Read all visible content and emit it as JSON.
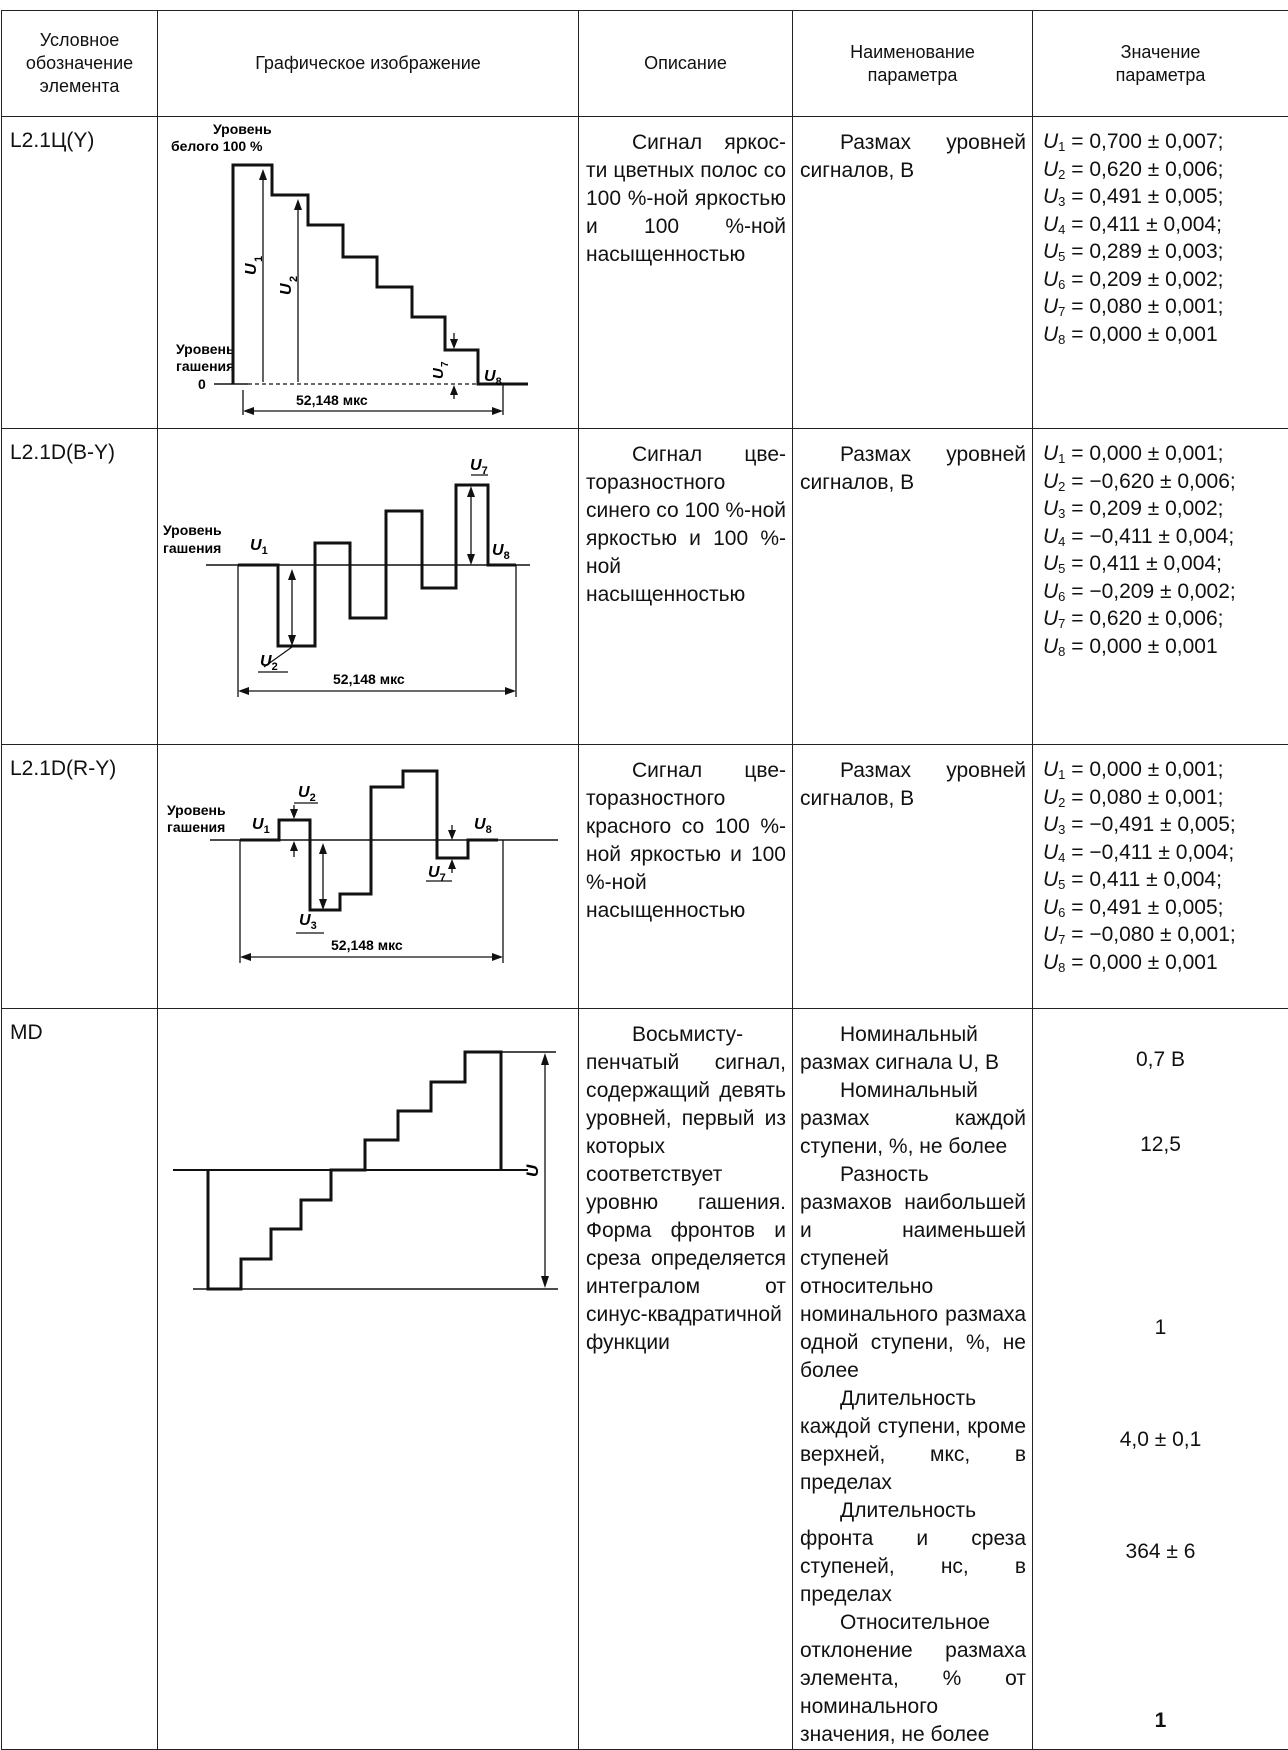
{
  "headers": {
    "code": "Условное обозначение элемента",
    "graphic": "Графическое изображение",
    "description": "Описание",
    "param_name": "Наименование параметра",
    "param_value": "Значение параметра"
  },
  "rows": [
    {
      "code": "L2.1Ц(Y)",
      "description_first": "Сигнал яркос-",
      "description_rest": "ти цветных полос со 100 %-ной яркостью и 100 %-ной насыщенностью",
      "param_name_first": "Размах уровней",
      "param_name_rest": "сигналов, В",
      "values": [
        "0,700 ± 0,007;",
        "0,620 ± 0,006;",
        "0,491 ± 0,005;",
        "0,411 ± 0,004;",
        "0,289 ± 0,003;",
        "0,209 ± 0,002;",
        "0,080 ± 0,001;",
        "0,000 ± 0,001"
      ],
      "graphic": {
        "label_white": "Уровень белого 100 %",
        "label_white_1": "Уровень",
        "label_white_2": "белого 100 %",
        "label_blank_1": "Уровень",
        "label_blank_2": "гашения",
        "label_zero": "0",
        "duration": "52,148 мкс"
      }
    },
    {
      "code": "L2.1D(B-Y)",
      "description_first": "Сигнал цве-",
      "description_rest": "торазностного синего со 100 %-ной яркостью и 100 %-ной насыщенностью",
      "param_name_first": "Размах уровней",
      "param_name_rest": "сигналов, В",
      "values": [
        "0,000 ± 0,001;",
        "−0,620 ± 0,006;",
        "0,209 ± 0,002;",
        "−0,411 ± 0,004;",
        "0,411 ± 0,004;",
        "−0,209 ± 0,002;",
        "0,620 ±  0,006;",
        "0,000 ± 0,001"
      ],
      "graphic": {
        "label_blank_1": "Уровень",
        "label_blank_2": "гашения",
        "duration": "52,148 мкс"
      }
    },
    {
      "code": "L2.1D(R-Y)",
      "description_first": "Сигнал цве-",
      "description_rest": "торазностного красного со 100 %-ной яркостью и 100 %-ной насыщенностью",
      "param_name_first": "Размах уровней",
      "param_name_rest": "сигналов, В",
      "values": [
        "0,000 ± 0,001;",
        "0,080 ± 0,001;",
        "−0,491 ± 0,005;",
        "−0,411 ± 0,004;",
        "0,411 ± 0,004;",
        "0,491 ± 0,005;",
        "−0,080 ± 0,001;",
        "0,000 ± 0,001"
      ],
      "graphic": {
        "label_blank_1": "Уровень",
        "label_blank_2": "гашения",
        "duration": "52,148 мкс"
      }
    },
    {
      "code": "MD",
      "description_first": "Восьмисту-",
      "description_rest": "пенчатый сигнал, содержащий девять уровней, первый из которых соответствует уровню гашения. Форма фронтов и среза определяется интегралом от синус-квадратичной функции",
      "param_names": [
        "Номинальный размах сигнала U, В",
        "Номинальный размах каждой ступени, %, не более",
        "Разность размахов наибольшей и наименьшей ступеней относительно номинального размаха одной ступени, %, не более",
        "Длительность каждой ступени, кроме верхней, мкс, в пределах",
        "Длительность фронта и среза ступеней, нс, в пределах",
        "Относительное отклонение размаха элемента, % от номинального значения, не более"
      ],
      "param_values": [
        "0,7 В",
        "12,5",
        "1",
        "4,0 ± 0,1",
        "364 ± 6",
        "1"
      ],
      "graphic": {
        "label_u": "U"
      }
    }
  ]
}
